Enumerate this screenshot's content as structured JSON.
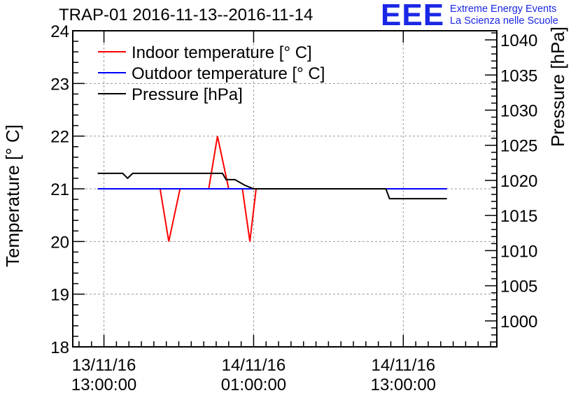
{
  "header": {
    "title": "TRAP-01 2016-11-13--2016-11-14",
    "logo": {
      "letters": "EEE",
      "line1": "Extreme Energy Events",
      "line2": "La Scienza nelle Scuole"
    }
  },
  "colors": {
    "indoor": "#ff0000",
    "outdoor": "#0000ff",
    "pressure": "#000000",
    "logo": "#1b27e6"
  },
  "chart_data": {
    "type": "line",
    "title": "TRAP-01 2016-11-13--2016-11-14",
    "xlabel": "",
    "ylabel": "Temperature [° C]",
    "y2label": "Pressure [hPa]",
    "xlim": [
      10.5,
      44.5
    ],
    "ylim": [
      18,
      24
    ],
    "y2lim": [
      996.3,
      1041.3
    ],
    "grid": true,
    "legend_position": "top-left",
    "x_ticks": [
      {
        "value": 13,
        "line1": "13/11/16",
        "line2": "13:00:00"
      },
      {
        "value": 25,
        "line1": "14/11/16",
        "line2": "01:00:00"
      },
      {
        "value": 37,
        "line1": "14/11/16",
        "line2": "13:00:00"
      }
    ],
    "y_ticks": [
      18,
      19,
      20,
      21,
      22,
      23,
      24
    ],
    "y2_ticks": [
      1000,
      1005,
      1010,
      1015,
      1020,
      1025,
      1030,
      1035,
      1040
    ],
    "series": [
      {
        "name": "Indoor temperature [° C]",
        "axis": "left",
        "color": "#ff0000",
        "x": [
          12.5,
          17.5,
          18.2,
          19.1,
          21.4,
          22.1,
          23.0,
          24.1,
          24.7,
          25.2,
          40.5
        ],
        "y": [
          21,
          21,
          20,
          21,
          21,
          22,
          21,
          21,
          20,
          21,
          21
        ]
      },
      {
        "name": "Outdoor temperature [° C]",
        "axis": "left",
        "color": "#0000ff",
        "x": [
          12.5,
          40.5
        ],
        "y": [
          21,
          21
        ]
      },
      {
        "name": "Pressure [hPa]",
        "axis": "right",
        "color": "#000000",
        "x": [
          12.5,
          14.5,
          14.9,
          15.3,
          22.5,
          22.8,
          23.5,
          24.3,
          25.0,
          35.6,
          35.9,
          40.5
        ],
        "y": [
          1021.0,
          1021.0,
          1020.3,
          1021.0,
          1021.0,
          1020.1,
          1020.1,
          1019.3,
          1018.8,
          1018.8,
          1017.4,
          1017.4
        ]
      }
    ]
  }
}
